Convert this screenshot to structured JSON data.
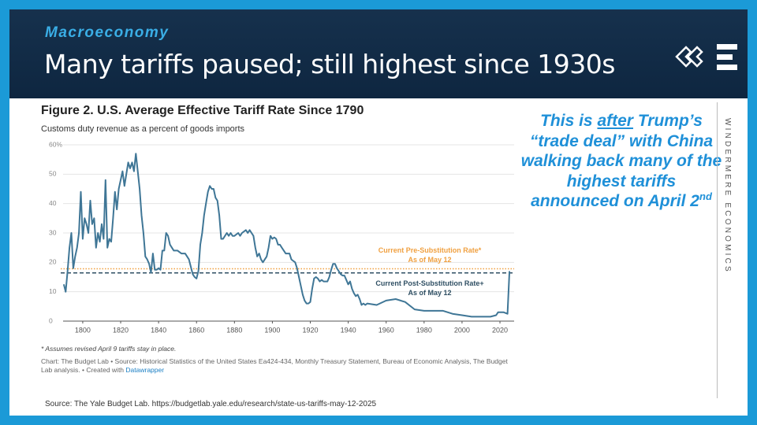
{
  "header": {
    "section": "Macroeconomy",
    "title": "Many tariffs paused; still highest since 1930s"
  },
  "chart_data": {
    "type": "line",
    "title": "Figure 2. U.S. Average Effective Tariff Rate Since 1790",
    "subtitle": "Customs duty revenue as a percent of goods imports",
    "x": [
      1790,
      1791,
      1792,
      1793,
      1794,
      1795,
      1796,
      1797,
      1798,
      1799,
      1800,
      1801,
      1802,
      1803,
      1804,
      1805,
      1806,
      1807,
      1808,
      1809,
      1810,
      1811,
      1812,
      1813,
      1814,
      1815,
      1816,
      1817,
      1818,
      1819,
      1820,
      1821,
      1822,
      1823,
      1824,
      1825,
      1826,
      1827,
      1828,
      1829,
      1830,
      1831,
      1832,
      1833,
      1834,
      1835,
      1836,
      1837,
      1838,
      1839,
      1840,
      1841,
      1842,
      1843,
      1844,
      1845,
      1846,
      1847,
      1848,
      1850,
      1852,
      1854,
      1856,
      1858,
      1859,
      1860,
      1861,
      1862,
      1863,
      1864,
      1865,
      1866,
      1867,
      1868,
      1869,
      1870,
      1871,
      1872,
      1873,
      1874,
      1875,
      1876,
      1877,
      1878,
      1879,
      1880,
      1882,
      1883,
      1884,
      1886,
      1887,
      1888,
      1889,
      1890,
      1891,
      1892,
      1893,
      1894,
      1895,
      1896,
      1897,
      1898,
      1899,
      1900,
      1901,
      1902,
      1903,
      1904,
      1905,
      1906,
      1907,
      1908,
      1909,
      1910,
      1911,
      1912,
      1913,
      1914,
      1915,
      1916,
      1917,
      1918,
      1919,
      1920,
      1921,
      1922,
      1923,
      1924,
      1925,
      1926,
      1927,
      1928,
      1929,
      1930,
      1931,
      1932,
      1933,
      1934,
      1935,
      1936,
      1937,
      1938,
      1939,
      1940,
      1941,
      1942,
      1943,
      1944,
      1945,
      1946,
      1947,
      1948,
      1949,
      1950,
      1955,
      1960,
      1965,
      1970,
      1975,
      1980,
      1985,
      1990,
      1995,
      2000,
      2005,
      2010,
      2015,
      2018,
      2019,
      2020,
      2022,
      2024,
      2025
    ],
    "values": [
      12.5,
      10,
      17,
      25,
      30,
      18,
      22,
      25,
      30,
      44,
      28,
      35,
      33,
      30,
      41,
      33,
      35,
      25,
      30,
      27,
      33,
      28,
      48,
      25,
      28,
      27,
      35,
      44,
      38,
      45,
      48,
      51,
      46,
      50,
      54,
      52,
      54,
      51,
      57,
      51,
      45,
      36,
      30,
      22,
      21,
      19.5,
      16.5,
      23,
      17.5,
      17.5,
      18,
      17.5,
      24,
      24,
      30,
      29,
      26,
      25,
      24,
      24,
      23,
      23,
      21,
      16,
      15,
      14.5,
      17,
      26,
      30,
      36,
      40,
      44,
      46,
      45,
      45,
      42,
      41,
      36,
      28,
      28,
      29,
      30,
      29,
      30,
      29,
      29,
      30,
      29,
      30,
      31,
      30,
      31,
      30,
      29,
      25,
      22,
      23,
      21,
      20,
      21,
      22,
      25,
      29,
      28,
      28.5,
      28,
      26,
      26,
      25,
      24,
      23,
      23,
      23,
      21,
      20.5,
      20,
      18,
      15,
      12,
      9,
      7,
      6,
      6,
      6.5,
      11,
      14.5,
      15,
      14.5,
      13.5,
      14,
      13.5,
      13.5,
      13.5,
      15,
      17.5,
      19.5,
      19.5,
      18,
      17,
      16,
      15.5,
      15.5,
      14,
      12.5,
      13.5,
      11,
      9.5,
      8.5,
      9,
      7.5,
      5.5,
      6,
      5.5,
      6,
      5.5,
      7,
      7.5,
      6.5,
      4,
      3.5,
      3.5,
      3.5,
      2.5,
      2,
      1.5,
      1.5,
      1.5,
      2,
      3,
      3,
      3,
      2.5,
      17
    ],
    "color": "#3f7696",
    "xlim": [
      1783.4,
      2030.8
    ],
    "xticks": [
      1800,
      1820,
      1840,
      1860,
      1880,
      1900,
      1920,
      1940,
      1960,
      1980,
      2000,
      2020
    ],
    "ylim": [
      0,
      60
    ],
    "yticks": [
      0,
      10,
      20,
      30,
      40,
      50,
      {
        "value": 60,
        "label": "60%"
      }
    ],
    "grid": true,
    "reference_lines": [
      {
        "value": 17.8,
        "label_lines": [
          "Current Pre-Substitution Rate*",
          "As of May 12"
        ],
        "color": "#f0a040"
      },
      {
        "value": 16.4,
        "label_lines": [
          "Current Post-Substitution Rate+",
          "As of May 12"
        ],
        "color": "#2f4f63"
      }
    ],
    "footnote": "* Assumes revised April 9 tariffs stay in place.",
    "credit": "Chart: The Budget Lab • Source: Historical Statistics of the United States Ea424-434, Monthly Treasury Statement, Bureau of Economic Analysis, The Budget Lab analysis. • Created with ",
    "credit_link": "Datawrapper"
  },
  "callout": {
    "parts": [
      "This is ",
      "after",
      " Trump’s “trade deal” with China walking back many of the highest tariffs announced on April 2",
      "nd"
    ]
  },
  "brand": "WINDERMERE ECONOMICS",
  "source": "Source: The Yale Budget Lab. https://budgetlab.yale.edu/research/state-us-tariffs-may-12-2025"
}
